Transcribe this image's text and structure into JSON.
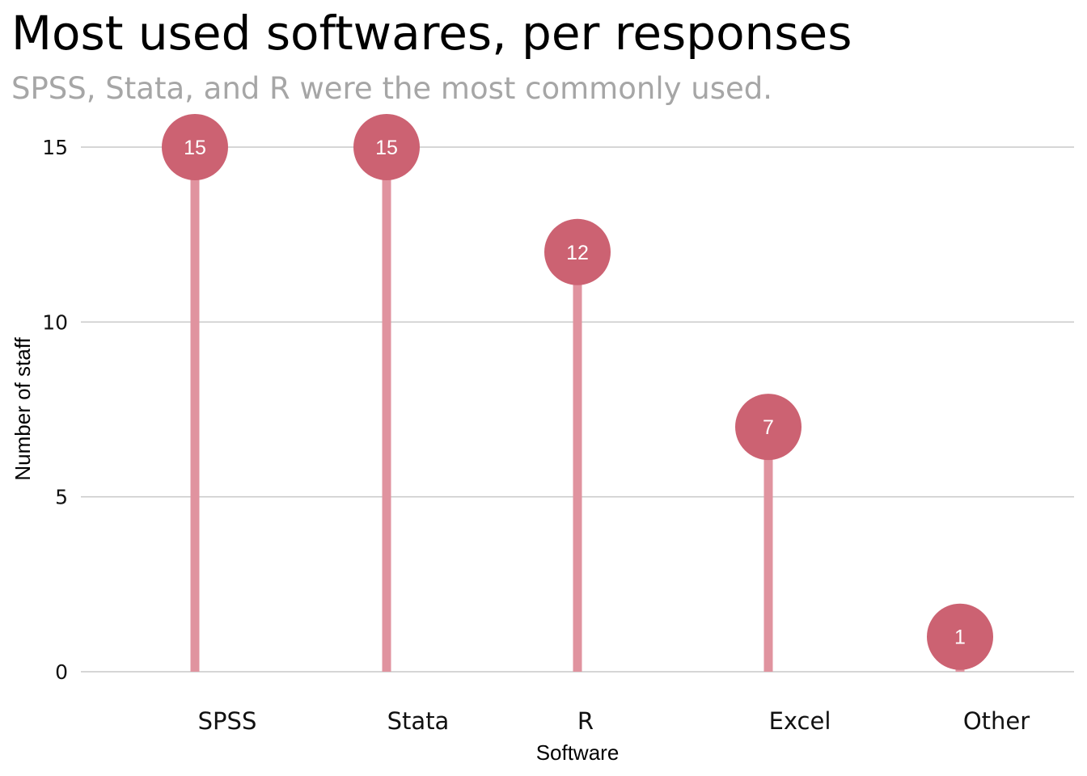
{
  "chart_data": {
    "type": "lollipop",
    "title": "Most used softwares, per responses",
    "subtitle": "SPSS, Stata, and R were the most commonly used.",
    "xlabel": "Software",
    "ylabel": "Number of staff",
    "categories": [
      "SPSS",
      "Stata",
      "R",
      "Excel",
      "Other"
    ],
    "values": [
      15,
      15,
      12,
      7,
      1
    ],
    "ylim": [
      0,
      15
    ],
    "yticks": [
      0,
      5,
      10,
      15
    ],
    "grid": "horizontal",
    "legend": "none",
    "colors": {
      "stem": "#e0939f",
      "point": "#cc6272",
      "label": "#ffffff",
      "grid": "#c8c8c8"
    }
  }
}
